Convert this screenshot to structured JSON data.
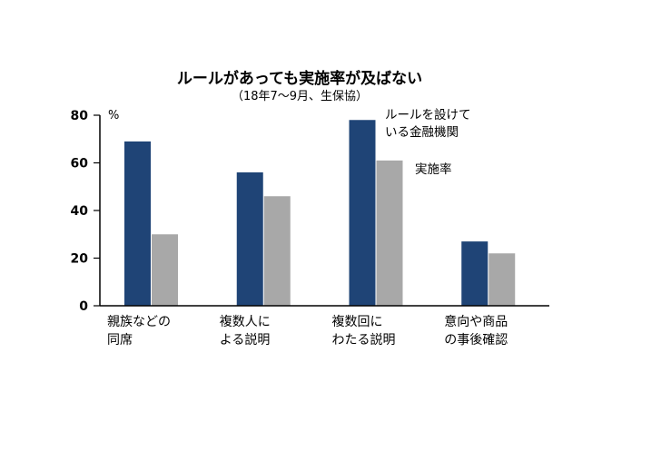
{
  "chart_data": {
    "type": "bar",
    "title": "ルールがあっても実施率が及ばない",
    "subtitle": "（18年7～9月、生保協）",
    "unit": "%",
    "ylim": [
      0,
      80
    ],
    "yticks": [
      "0",
      "20",
      "40",
      "60",
      "80"
    ],
    "grid": false,
    "categories": [
      [
        "親族などの",
        "同席"
      ],
      [
        "複数人に",
        "よる説明"
      ],
      [
        "複数回に",
        "わたる説明"
      ],
      [
        "意向や商品",
        "の事後確認"
      ]
    ],
    "series": [
      {
        "name": [
          "ルールを設けて",
          "いる金融機関"
        ],
        "values": [
          69,
          56,
          78,
          27
        ],
        "color": "#1f4476"
      },
      {
        "name": [
          "実施率"
        ],
        "values": [
          30,
          46,
          61,
          22
        ],
        "color": "#a8a8a8"
      }
    ]
  }
}
